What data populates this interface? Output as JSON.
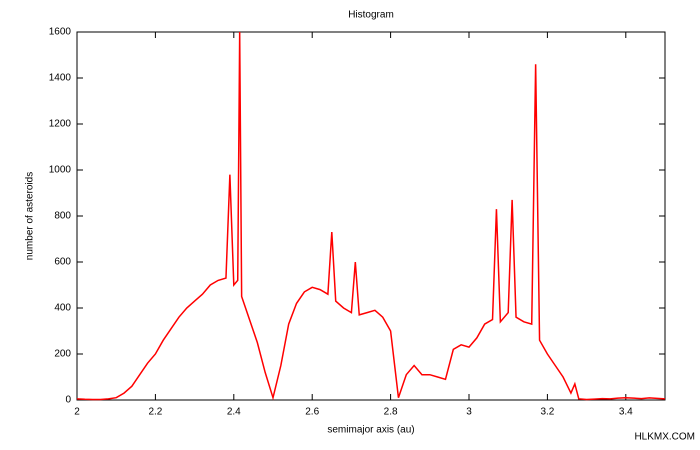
{
  "chart_data": {
    "type": "line",
    "title": "Histogram",
    "x_label": "semimajor axis (au)",
    "y_label": "number of asteroids",
    "watermark": "HLKMX.COM",
    "x": [
      2.0,
      2.02,
      2.04,
      2.06,
      2.08,
      2.1,
      2.12,
      2.14,
      2.16,
      2.18,
      2.2,
      2.22,
      2.24,
      2.26,
      2.28,
      2.3,
      2.32,
      2.34,
      2.36,
      2.38,
      2.39,
      2.4,
      2.41,
      2.415,
      2.42,
      2.44,
      2.46,
      2.48,
      2.5,
      2.52,
      2.54,
      2.56,
      2.58,
      2.6,
      2.62,
      2.64,
      2.65,
      2.66,
      2.68,
      2.7,
      2.71,
      2.72,
      2.74,
      2.76,
      2.78,
      2.8,
      2.82,
      2.84,
      2.86,
      2.88,
      2.9,
      2.92,
      2.94,
      2.96,
      2.98,
      3.0,
      3.02,
      3.04,
      3.06,
      3.07,
      3.08,
      3.1,
      3.11,
      3.12,
      3.14,
      3.16,
      3.17,
      3.18,
      3.2,
      3.22,
      3.24,
      3.26,
      3.27,
      3.28,
      3.3,
      3.32,
      3.34,
      3.36,
      3.38,
      3.4,
      3.42,
      3.44,
      3.46,
      3.48,
      3.5
    ],
    "series": [
      {
        "name": "asteroids",
        "color": "#ff0000",
        "values": [
          5,
          3,
          2,
          2,
          5,
          10,
          30,
          60,
          110,
          160,
          200,
          260,
          310,
          360,
          400,
          430,
          460,
          500,
          520,
          530,
          980,
          500,
          520,
          1600,
          450,
          350,
          250,
          120,
          10,
          150,
          330,
          420,
          470,
          490,
          480,
          460,
          730,
          430,
          400,
          380,
          600,
          370,
          380,
          390,
          360,
          300,
          10,
          110,
          150,
          110,
          110,
          100,
          90,
          220,
          240,
          230,
          270,
          330,
          350,
          830,
          340,
          380,
          870,
          360,
          340,
          330,
          1460,
          260,
          200,
          150,
          100,
          30,
          70,
          5,
          2,
          4,
          6,
          5,
          8,
          10,
          8,
          6,
          9,
          7,
          5
        ]
      }
    ],
    "xlim": [
      2,
      3.5
    ],
    "xticks": [
      2,
      2.2,
      2.4,
      2.6,
      2.8,
      3,
      3.2,
      3.4
    ],
    "ylim": [
      0,
      1600
    ],
    "yticks": [
      0,
      200,
      400,
      600,
      800,
      1000,
      1200,
      1400,
      1600
    ]
  }
}
